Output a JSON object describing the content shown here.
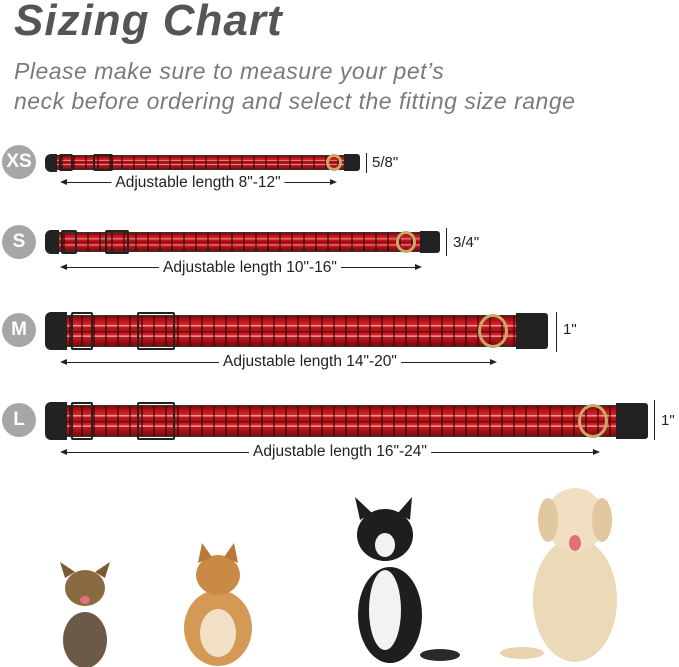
{
  "header": {
    "title": "Sizing Chart",
    "subtitle_lines": [
      "Please make sure to measure your pet’s",
      "neck before ordering and select the fitting size range"
    ]
  },
  "sizes": [
    {
      "size": "XS",
      "width": "5/8\"",
      "length": "Adjustable length 8\"-12\""
    },
    {
      "size": "S",
      "width": "3/4\"",
      "length": "Adjustable length 10\"-16\""
    },
    {
      "size": "M",
      "width": "1\"",
      "length": "Adjustable length 14\"-20\""
    },
    {
      "size": "L",
      "width": "1\"",
      "length": "Adjustable length 16\"-24\""
    }
  ],
  "colors": {
    "collar": "#c4161c",
    "badge": "#a6a6a6",
    "title": "#555555"
  }
}
